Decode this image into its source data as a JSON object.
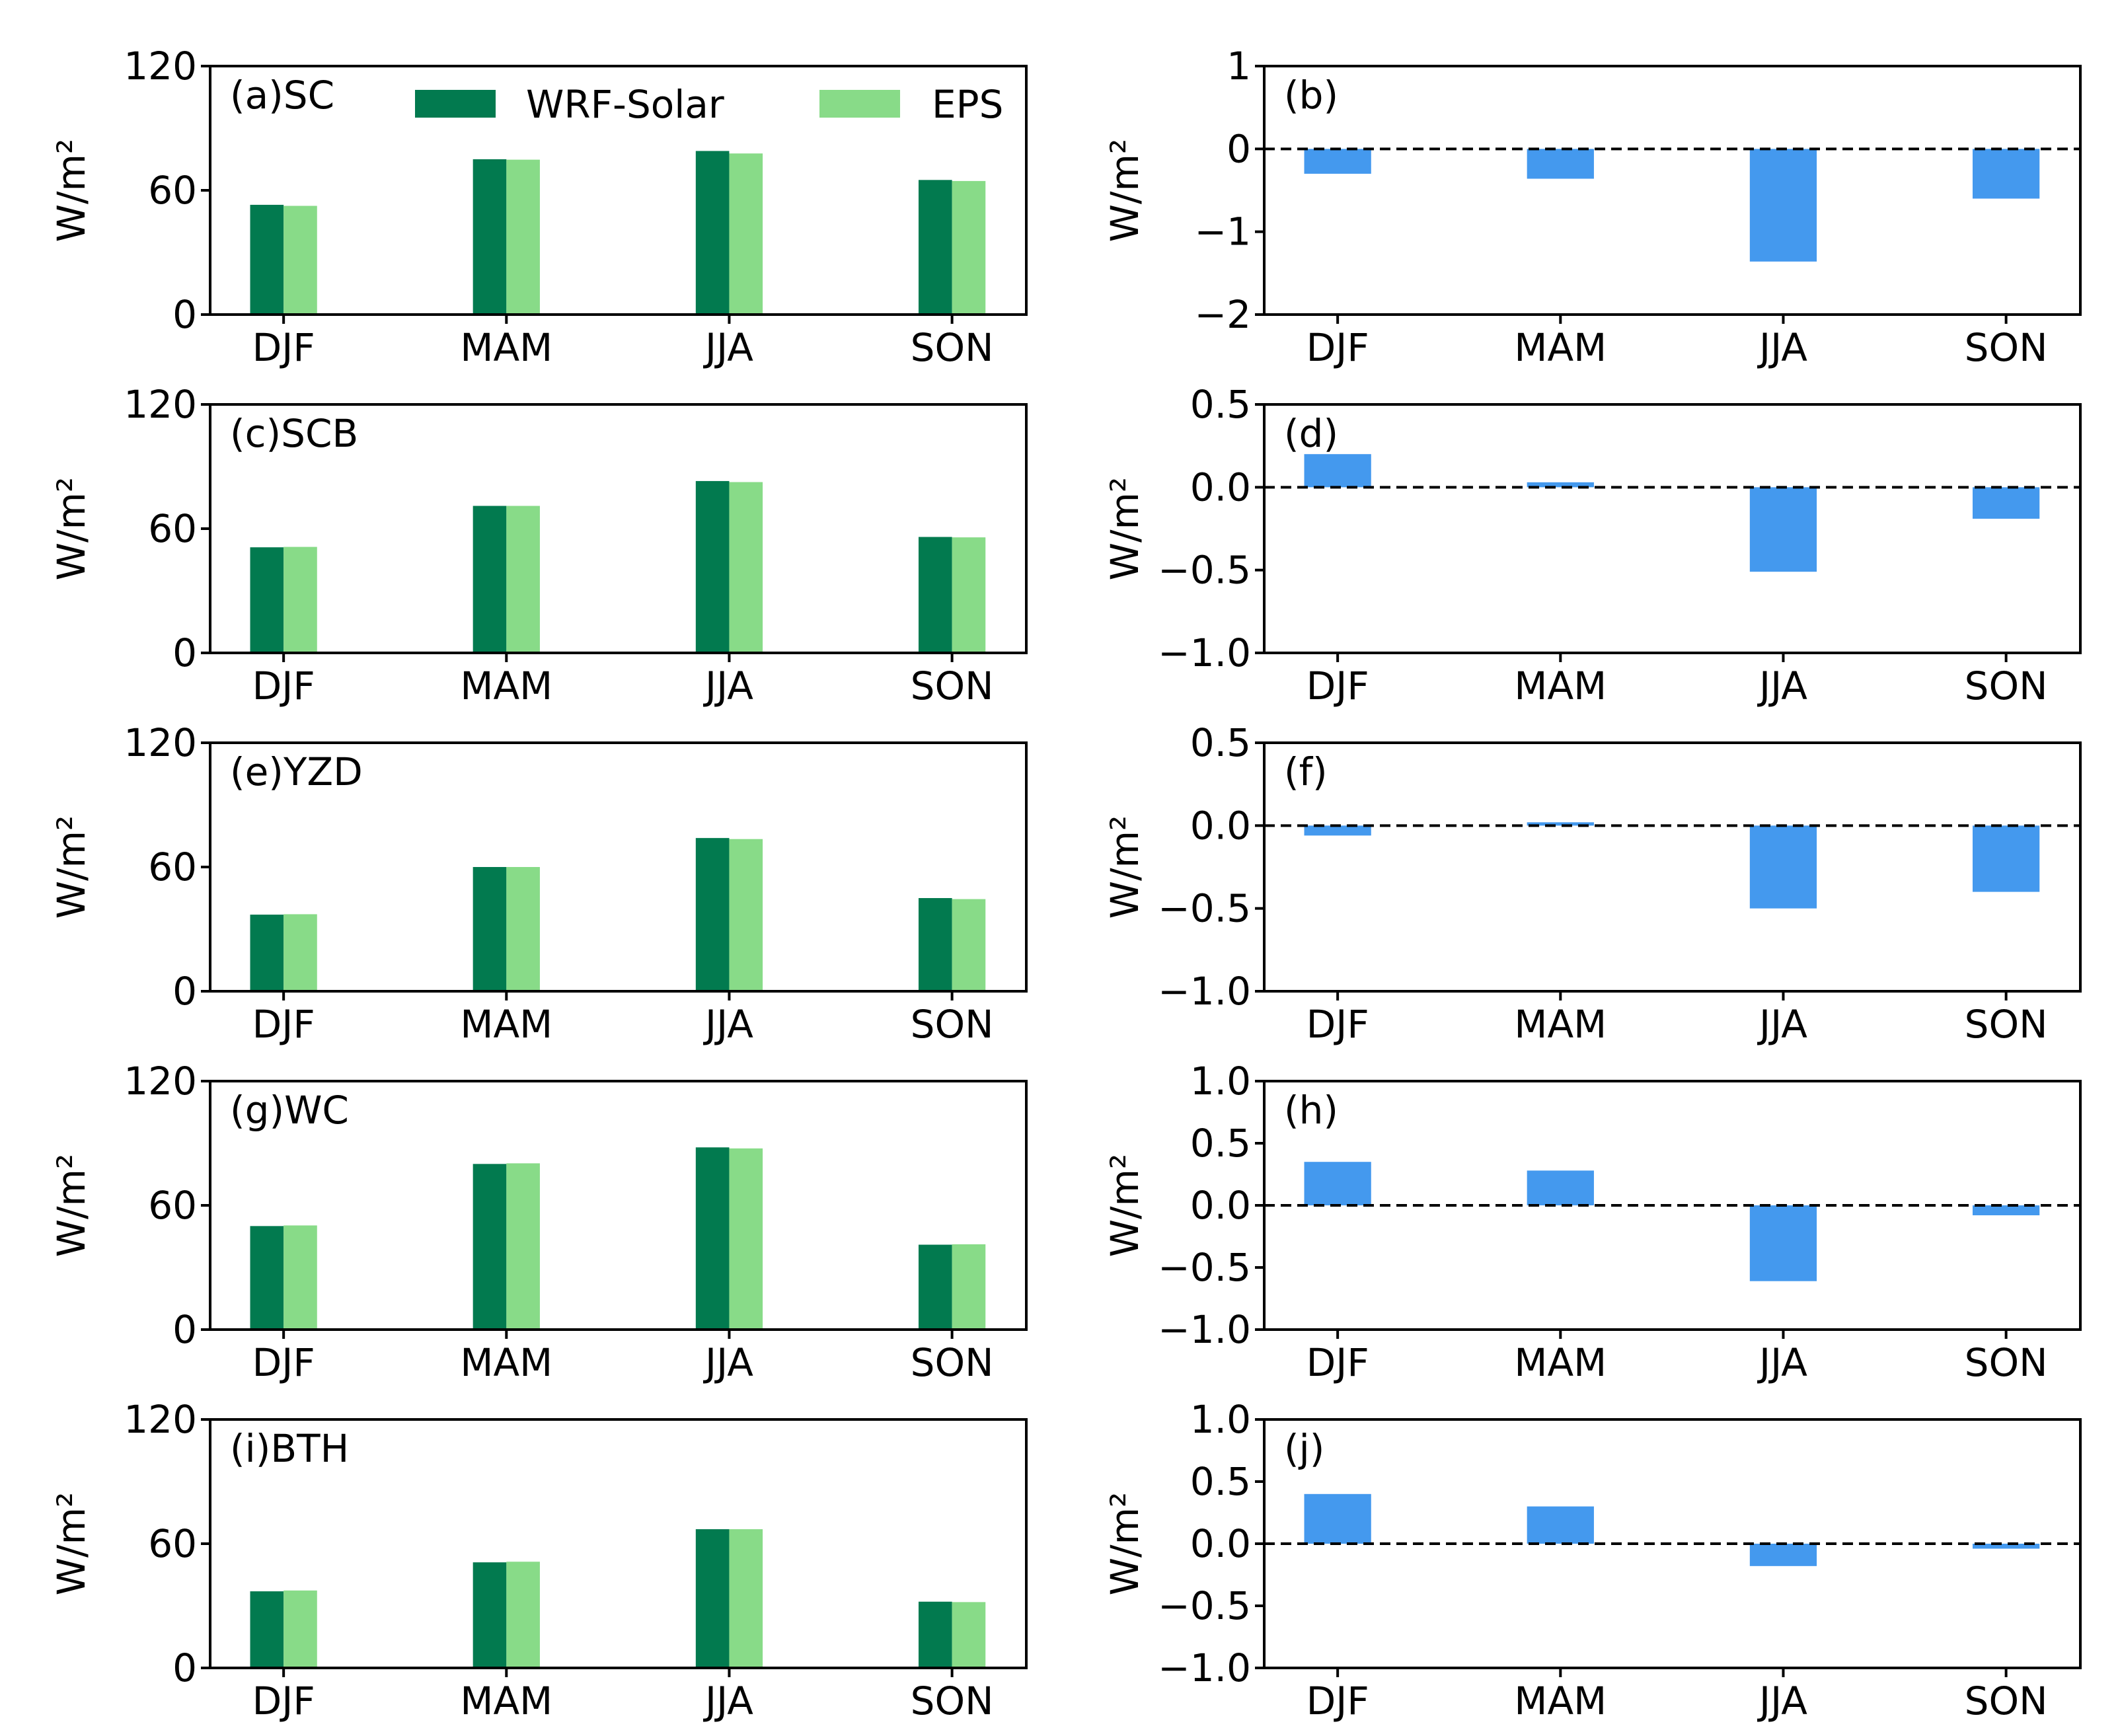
{
  "colors": {
    "wrf_solar": "#027a4f",
    "eps": "#88db88",
    "diff": "#4499ee",
    "axis": "#000000"
  },
  "legend": {
    "entries": [
      "WRF-Solar",
      "EPS"
    ],
    "placement": "top-right of panel (a)"
  },
  "chart_data": [
    {
      "type": "bar",
      "label": "(a)SC",
      "categories": [
        "DJF",
        "MAM",
        "JJA",
        "SON"
      ],
      "series": [
        {
          "name": "WRF-Solar",
          "values": [
            53,
            75,
            79,
            65
          ]
        },
        {
          "name": "EPS",
          "values": [
            52.5,
            74.8,
            77.8,
            64.5
          ]
        }
      ],
      "ylabel": "W/m²",
      "ylim": [
        0,
        120
      ],
      "yticks": [
        0,
        60,
        120
      ],
      "ytick_labels": [
        "0",
        "60",
        "120"
      ],
      "grid": false
    },
    {
      "type": "bar",
      "label": "(b)",
      "categories": [
        "DJF",
        "MAM",
        "JJA",
        "SON"
      ],
      "series": [
        {
          "values": [
            -0.3,
            -0.36,
            -1.36,
            -0.6
          ]
        }
      ],
      "ylabel": "W/m²",
      "ylim": [
        -2,
        1
      ],
      "yticks": [
        -2,
        -1,
        0,
        1
      ],
      "ytick_labels": [
        "−2",
        "−1",
        "0",
        "1"
      ],
      "zero_line": "dashed",
      "grid": false
    },
    {
      "type": "bar",
      "label": "(c)SCB",
      "categories": [
        "DJF",
        "MAM",
        "JJA",
        "SON"
      ],
      "series": [
        {
          "name": "WRF-Solar",
          "values": [
            51,
            71,
            83,
            56
          ]
        },
        {
          "name": "EPS",
          "values": [
            51.2,
            71,
            82.5,
            55.8
          ]
        }
      ],
      "ylabel": "W/m²",
      "ylim": [
        0,
        120
      ],
      "yticks": [
        0,
        60,
        120
      ],
      "ytick_labels": [
        "0",
        "60",
        "120"
      ],
      "grid": false
    },
    {
      "type": "bar",
      "label": "(d)",
      "categories": [
        "DJF",
        "MAM",
        "JJA",
        "SON"
      ],
      "series": [
        {
          "values": [
            0.2,
            0.03,
            -0.51,
            -0.19
          ]
        }
      ],
      "ylabel": "W/m²",
      "ylim": [
        -1.0,
        0.5
      ],
      "yticks": [
        -1.0,
        -0.5,
        0.0,
        0.5
      ],
      "ytick_labels": [
        "−1.0",
        "−0.5",
        "0.0",
        "0.5"
      ],
      "zero_line": "dashed",
      "grid": false
    },
    {
      "type": "bar",
      "label": "(e)YZD",
      "categories": [
        "DJF",
        "MAM",
        "JJA",
        "SON"
      ],
      "series": [
        {
          "name": "WRF-Solar",
          "values": [
            37,
            60,
            74,
            45
          ]
        },
        {
          "name": "EPS",
          "values": [
            37.2,
            60,
            73.5,
            44.5
          ]
        }
      ],
      "ylabel": "W/m²",
      "ylim": [
        0,
        120
      ],
      "yticks": [
        0,
        60,
        120
      ],
      "ytick_labels": [
        "0",
        "60",
        "120"
      ],
      "grid": false
    },
    {
      "type": "bar",
      "label": "(f)",
      "categories": [
        "DJF",
        "MAM",
        "JJA",
        "SON"
      ],
      "series": [
        {
          "values": [
            -0.06,
            0.02,
            -0.5,
            -0.4
          ]
        }
      ],
      "ylabel": "W/m²",
      "ylim": [
        -1.0,
        0.5
      ],
      "yticks": [
        -1.0,
        -0.5,
        0.0,
        0.5
      ],
      "ytick_labels": [
        "−1.0",
        "−0.5",
        "0.0",
        "0.5"
      ],
      "zero_line": "dashed",
      "grid": false
    },
    {
      "type": "bar",
      "label": "(g)WC",
      "categories": [
        "DJF",
        "MAM",
        "JJA",
        "SON"
      ],
      "series": [
        {
          "name": "WRF-Solar",
          "values": [
            50,
            80,
            88,
            41
          ]
        },
        {
          "name": "EPS",
          "values": [
            50.3,
            80.3,
            87.5,
            41.2
          ]
        }
      ],
      "ylabel": "W/m²",
      "ylim": [
        0,
        120
      ],
      "yticks": [
        0,
        60,
        120
      ],
      "ytick_labels": [
        "0",
        "60",
        "120"
      ],
      "grid": false
    },
    {
      "type": "bar",
      "label": "(h)",
      "categories": [
        "DJF",
        "MAM",
        "JJA",
        "SON"
      ],
      "series": [
        {
          "values": [
            0.35,
            0.28,
            -0.61,
            -0.08
          ]
        }
      ],
      "ylabel": "W/m²",
      "ylim": [
        -1.0,
        1.0
      ],
      "yticks": [
        -1.0,
        -0.5,
        0.0,
        0.5,
        1.0
      ],
      "ytick_labels": [
        "−1.0",
        "−0.5",
        "0.0",
        "0.5",
        "1.0"
      ],
      "zero_line": "dashed",
      "grid": false
    },
    {
      "type": "bar",
      "label": "(i)BTH",
      "categories": [
        "DJF",
        "MAM",
        "JJA",
        "SON"
      ],
      "series": [
        {
          "name": "WRF-Solar",
          "values": [
            37,
            51,
            67,
            32
          ]
        },
        {
          "name": "EPS",
          "values": [
            37.4,
            51.3,
            67,
            31.8
          ]
        }
      ],
      "ylabel": "W/m²",
      "ylim": [
        0,
        120
      ],
      "yticks": [
        0,
        60,
        120
      ],
      "ytick_labels": [
        "0",
        "60",
        "120"
      ],
      "grid": false
    },
    {
      "type": "bar",
      "label": "(j)",
      "categories": [
        "DJF",
        "MAM",
        "JJA",
        "SON"
      ],
      "series": [
        {
          "values": [
            0.4,
            0.3,
            -0.18,
            -0.04
          ]
        }
      ],
      "ylabel": "W/m²",
      "ylim": [
        -1.0,
        1.0
      ],
      "yticks": [
        -1.0,
        -0.5,
        0.0,
        0.5,
        1.0
      ],
      "ytick_labels": [
        "−1.0",
        "−0.5",
        "0.0",
        "0.5",
        "1.0"
      ],
      "zero_line": "dashed",
      "grid": false
    }
  ]
}
